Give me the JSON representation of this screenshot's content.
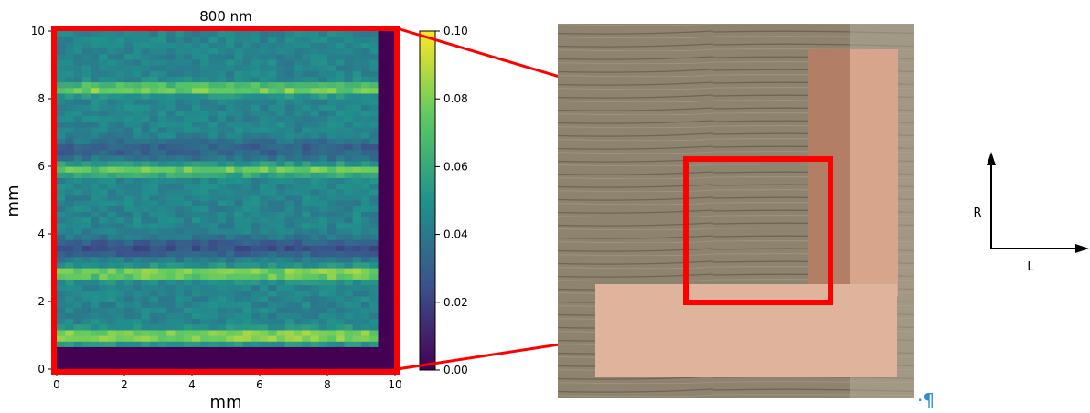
{
  "chart_data": {
    "type": "heatmap",
    "title": "800 nm",
    "xlabel": "mm",
    "ylabel": "mm",
    "xlim": [
      0,
      10
    ],
    "ylim": [
      0,
      10
    ],
    "x_ticks": [
      "0",
      "2",
      "4",
      "6",
      "8",
      "10"
    ],
    "y_ticks": [
      "0",
      "2",
      "4",
      "6",
      "8",
      "10"
    ],
    "colorbar": {
      "min": 0.0,
      "max": 0.1,
      "ticks": [
        "0.00",
        "0.02",
        "0.04",
        "0.06",
        "0.08",
        "0.10"
      ],
      "colormap": "viridis"
    },
    "background_value": 0.045,
    "bright_bands": [
      {
        "y_mm": 1.0,
        "value": 0.09
      },
      {
        "y_mm": 2.85,
        "value": 0.085
      },
      {
        "y_mm": 5.9,
        "value": 0.075
      },
      {
        "y_mm": 8.3,
        "value": 0.08
      }
    ],
    "dark_bands": [
      {
        "y_mm": 3.6,
        "value": 0.025
      },
      {
        "y_mm": 6.5,
        "value": 0.03
      }
    ],
    "empty_region": {
      "x_min_mm": 9.5,
      "y_max_mm": 0.7,
      "value": 0.0
    }
  },
  "photo": {
    "description_colors": {
      "wood": "#8e836f",
      "copper": "#d9a88e",
      "highlight": "#ff0000"
    }
  },
  "axes_indicator": {
    "vertical_label": "R",
    "horizontal_label": "L"
  },
  "colors": {
    "highlight": "#ff0000",
    "viridis_low": "#440154",
    "viridis_mid": "#21918c",
    "viridis_high": "#fde725"
  },
  "marker": "·¶"
}
